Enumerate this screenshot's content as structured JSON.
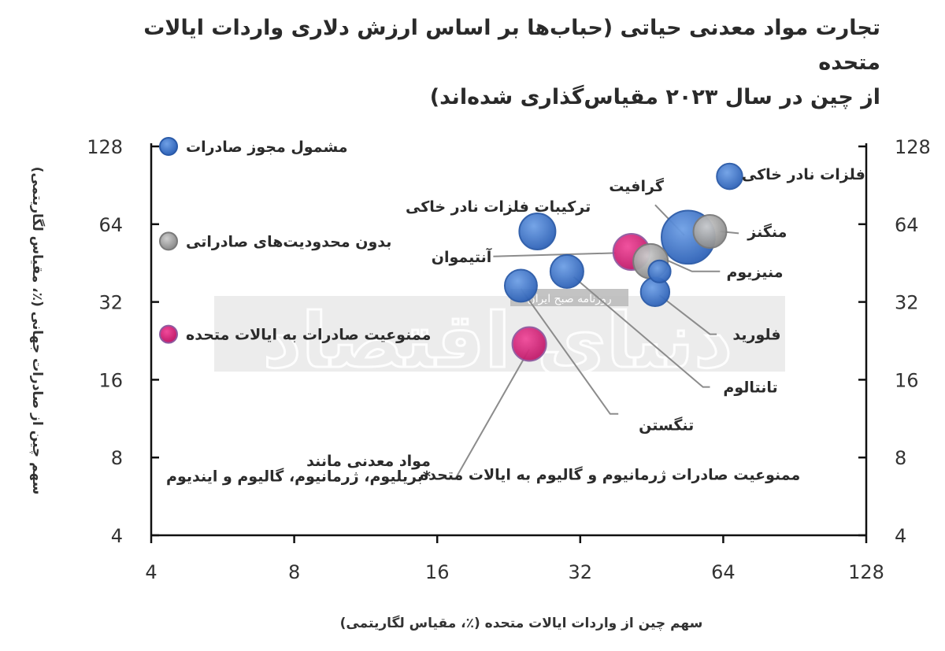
{
  "title_lines": [
    "تجارت مواد معدنی حیاتی (حباب‌ها بر اساس ارزش دلاری واردات ایالات متحده",
    "از چین در سال ۲۰۲۳ مقیاس‌گذاری شده‌اند)"
  ],
  "watermark": {
    "big": "دنیای اقتصاد",
    "small": "روزنامه صبح ایران"
  },
  "colors": {
    "export_license": "#3b73c9",
    "no_restriction": "#9e9e9e",
    "us_ban": "#d0267a",
    "leader_line": "#8c8c8c",
    "axis": "#111111"
  },
  "chart_data": {
    "type": "scatter",
    "x_scale": "log2",
    "y_scale": "log2",
    "xlim": [
      4,
      128
    ],
    "ylim": [
      4,
      128
    ],
    "x_ticks": [
      4,
      8,
      16,
      32,
      64,
      128
    ],
    "y_ticks": [
      4,
      8,
      16,
      32,
      64,
      128
    ],
    "xlabel": "سهم چین از واردات ایالات متحده (٪، مقیاس لگاریتمی)",
    "ylabel": "سهم چین از صادرات جهانی (٪، مقیاس لگاریتمی)",
    "legend": [
      {
        "label": "مشمول مجوز صادرات",
        "color": "export_license",
        "y": 128
      },
      {
        "label": "بدون محدودیت‌های صادراتی",
        "color": "no_restriction",
        "y": 55
      },
      {
        "label": "ممنوعیت صادرات به ایالات متحده",
        "color": "us_ban",
        "y": 24
      }
    ],
    "points": [
      {
        "x": 54,
        "y": 57,
        "size": 2.6,
        "type": "export_license"
      },
      {
        "x": 66,
        "y": 98,
        "size": 0.6,
        "type": "export_license"
      },
      {
        "x": 60,
        "y": 60,
        "size": 1.0,
        "type": "no_restriction"
      },
      {
        "x": 26,
        "y": 60,
        "size": 1.2,
        "type": "export_license"
      },
      {
        "x": 41,
        "y": 50,
        "size": 1.2,
        "type": "us_ban"
      },
      {
        "x": 45,
        "y": 46,
        "size": 1.1,
        "type": "no_restriction"
      },
      {
        "x": 30,
        "y": 42,
        "size": 1.0,
        "type": "export_license"
      },
      {
        "x": 47,
        "y": 42,
        "size": 0.45,
        "type": "export_license"
      },
      {
        "x": 46,
        "y": 35,
        "size": 0.75,
        "type": "export_license"
      },
      {
        "x": 24,
        "y": 37,
        "size": 0.95,
        "type": "export_license"
      },
      {
        "x": 25,
        "y": 22,
        "size": 1.05,
        "type": "us_ban"
      }
    ],
    "annotations": [
      {
        "text": "گرافیت",
        "tx": 42,
        "ty": 90,
        "anchor": "middle",
        "line": [
          [
            46,
            76
          ],
          [
            53,
            58
          ]
        ]
      },
      {
        "text": "فلزات نادر خاکی",
        "tx": 70,
        "ty": 100,
        "anchor": "start"
      },
      {
        "text": "ترکیبات فلزات نادر خاکی",
        "tx": 21.5,
        "ty": 75,
        "anchor": "middle"
      },
      {
        "text": "منگنز",
        "tx": 72,
        "ty": 60,
        "anchor": "start",
        "line": [
          [
            69,
            59
          ],
          [
            63,
            60
          ]
        ]
      },
      {
        "text": "آنتیموان",
        "tx": 18,
        "ty": 48,
        "anchor": "middle",
        "line": [
          [
            21,
            48
          ],
          [
            38,
            49.5
          ]
        ]
      },
      {
        "text": "منیزیوم",
        "tx": 65,
        "ty": 42,
        "anchor": "start",
        "line": [
          [
            63,
            42
          ],
          [
            55,
            42
          ],
          [
            48,
            47
          ]
        ]
      },
      {
        "text": "فلورید",
        "tx": 67,
        "ty": 24,
        "anchor": "start",
        "line": [
          [
            62,
            24
          ],
          [
            60,
            24
          ],
          [
            47,
            34
          ]
        ]
      },
      {
        "text": "تانتالوم",
        "tx": 64,
        "ty": 15,
        "anchor": "start",
        "line": [
          [
            60,
            15
          ],
          [
            58,
            15
          ],
          [
            31,
            40
          ]
        ]
      },
      {
        "text": "تنگستن",
        "tx": 42.5,
        "ty": 10.7,
        "anchor": "start",
        "line": [
          [
            38.5,
            11.8
          ],
          [
            37,
            11.8
          ],
          [
            24,
            36
          ]
        ]
      },
      {
        "text": "ممنوعیت صادرات ژرمانیوم و گالیوم به ایالات متحده",
        "tx": 93,
        "ty": 6.9,
        "anchor": "end"
      },
      {
        "text": "مواد معدنی مانند",
        "tx": 15.5,
        "ty": 7.8,
        "anchor": "end"
      },
      {
        "text": "بریلیوم، ژرمانیوم، گالیوم و ایندیوم*",
        "tx": 15.5,
        "ty": 6.8,
        "anchor": "end",
        "line": [
          [
            16.2,
            6.65
          ],
          [
            17.5,
            6.65
          ],
          [
            25,
            21
          ]
        ]
      }
    ]
  }
}
